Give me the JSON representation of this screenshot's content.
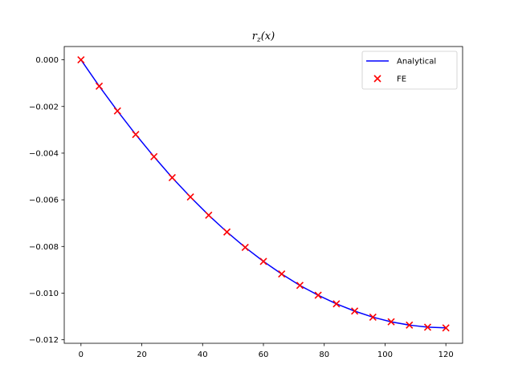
{
  "chart_data": {
    "type": "line",
    "title": "r_z(x)",
    "title_parts": {
      "main": "r",
      "sub": "z",
      "args": "(x)"
    },
    "xlabel": "",
    "ylabel": "",
    "xlim": [
      -5.5,
      125.5
    ],
    "ylim": [
      -0.01215,
      0.00057
    ],
    "x_ticks": [
      0,
      20,
      40,
      60,
      80,
      100,
      120
    ],
    "x_tick_labels": [
      "0",
      "20",
      "40",
      "60",
      "80",
      "100",
      "120"
    ],
    "y_ticks": [
      0.0,
      -0.002,
      -0.004,
      -0.006,
      -0.008,
      -0.01,
      -0.012
    ],
    "y_tick_labels": [
      "0.000",
      "−0.002",
      "−0.004",
      "−0.006",
      "−0.008",
      "−0.010",
      "−0.012"
    ],
    "grid": false,
    "legend_position": "top-right",
    "series": [
      {
        "name": "Analytical",
        "kind": "line",
        "color": "#0000ff",
        "x": [
          0,
          6,
          12,
          18,
          24,
          30,
          36,
          42,
          48,
          54,
          60,
          66,
          72,
          78,
          84,
          90,
          96,
          102,
          108,
          114,
          120
        ],
        "y": [
          0.0,
          -0.00113,
          -0.00219,
          -0.0032,
          -0.00415,
          -0.00505,
          -0.00588,
          -0.00666,
          -0.00738,
          -0.00804,
          -0.00864,
          -0.00918,
          -0.00967,
          -0.01009,
          -0.01046,
          -0.01077,
          -0.01103,
          -0.01123,
          -0.01137,
          -0.01146,
          -0.01149
        ]
      },
      {
        "name": "FE",
        "kind": "scatter",
        "marker": "x",
        "color": "#ff0000",
        "x": [
          0,
          6,
          12,
          18,
          24,
          30,
          36,
          42,
          48,
          54,
          60,
          66,
          72,
          78,
          84,
          90,
          96,
          102,
          108,
          114,
          120
        ],
        "y": [
          0.0,
          -0.00113,
          -0.00219,
          -0.0032,
          -0.00415,
          -0.00505,
          -0.00588,
          -0.00666,
          -0.00738,
          -0.00804,
          -0.00864,
          -0.00918,
          -0.00967,
          -0.01009,
          -0.01046,
          -0.01077,
          -0.01103,
          -0.01123,
          -0.01137,
          -0.01146,
          -0.01149
        ]
      }
    ]
  }
}
